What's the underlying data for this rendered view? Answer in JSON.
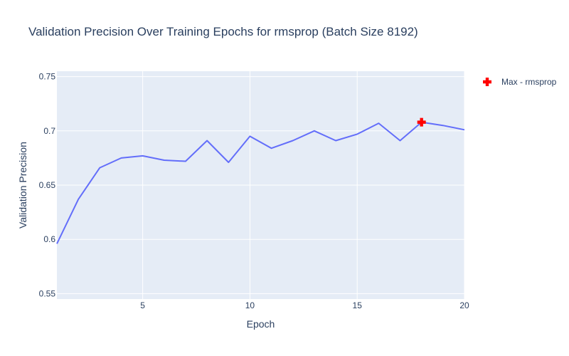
{
  "chart_data": {
    "type": "line",
    "title": "Validation Precision Over Training Epochs for rmsprop (Batch Size 8192)",
    "xlabel": "Epoch",
    "ylabel": "Validation Precision",
    "xlim": [
      1,
      20
    ],
    "ylim": [
      0.545,
      0.755
    ],
    "xticks": [
      5,
      10,
      15,
      20
    ],
    "yticks": [
      0.55,
      0.6,
      0.65,
      0.7,
      0.75
    ],
    "grid": true,
    "legend_position": "top-right",
    "colors": {
      "plot_bg": "#e5ecf6",
      "grid": "#ffffff",
      "line": "#636efa",
      "marker": "#ff0000",
      "text": "#2a3f5f"
    },
    "series": [
      {
        "x": [
          1,
          2,
          3,
          4,
          5,
          6,
          7,
          8,
          9,
          10,
          11,
          12,
          13,
          14,
          15,
          16,
          17,
          18,
          19,
          20
        ],
        "values": [
          0.596,
          0.637,
          0.666,
          0.675,
          0.677,
          0.673,
          0.672,
          0.691,
          0.671,
          0.695,
          0.684,
          0.691,
          0.7,
          0.691,
          0.697,
          0.707,
          0.691,
          0.708,
          0.705,
          0.701
        ]
      },
      {
        "name": "Max - rmsprop",
        "marker": "cross",
        "x": [
          18
        ],
        "values": [
          0.708
        ]
      }
    ]
  }
}
